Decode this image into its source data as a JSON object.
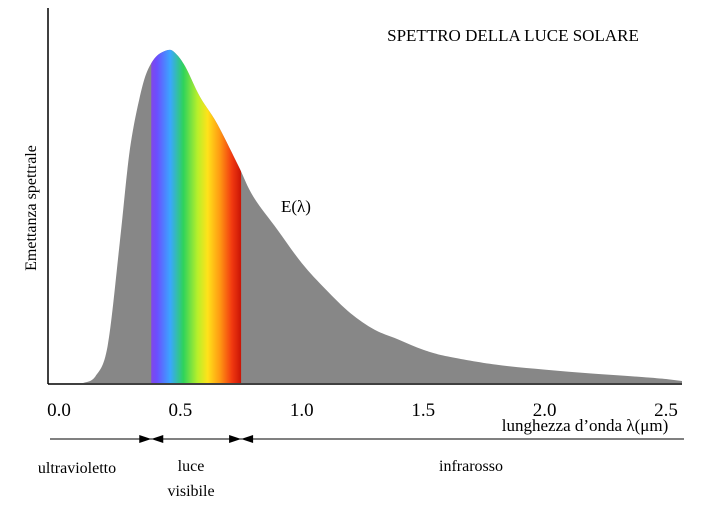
{
  "chart_data": {
    "type": "area",
    "title": "SPETTRO DELLA LUCE SOLARE",
    "xlabel": "lunghezza d’onda λ(μm)",
    "ylabel": "Emettanza spettrale",
    "curve_label": "E(λ)",
    "xlim": [
      0.0,
      2.5
    ],
    "ylim": [
      0,
      1.0
    ],
    "x_ticks": [
      "0.0",
      "0.5",
      "1.0",
      "1.5",
      "2.0",
      "2.5"
    ],
    "x_tick_values": [
      0.0,
      0.5,
      1.0,
      1.5,
      2.0,
      2.5
    ],
    "series": [
      {
        "x": [
          0.1,
          0.15,
          0.2,
          0.25,
          0.28,
          0.3,
          0.33,
          0.36,
          0.4,
          0.45,
          0.48,
          0.52,
          0.58,
          0.65,
          0.74,
          0.8,
          0.9,
          1.0,
          1.1,
          1.2,
          1.3,
          1.4,
          1.5,
          1.6,
          1.8,
          2.0,
          2.2,
          2.4,
          2.5
        ],
        "values": [
          0.0,
          0.02,
          0.11,
          0.42,
          0.63,
          0.74,
          0.85,
          0.93,
          0.98,
          1.0,
          0.99,
          0.95,
          0.86,
          0.78,
          0.65,
          0.56,
          0.46,
          0.36,
          0.28,
          0.21,
          0.16,
          0.13,
          0.1,
          0.08,
          0.055,
          0.04,
          0.028,
          0.018,
          0.012
        ]
      }
    ],
    "visible_band": [
      0.38,
      0.75
    ],
    "colors": {
      "area": "#878787",
      "axis": "#000000"
    },
    "grid": false
  },
  "regions": {
    "uv": "ultravioletto",
    "visible_line1": "luce",
    "visible_line2": "visibile",
    "ir": "infrarosso",
    "boundaries": [
      0.38,
      0.75
    ]
  }
}
